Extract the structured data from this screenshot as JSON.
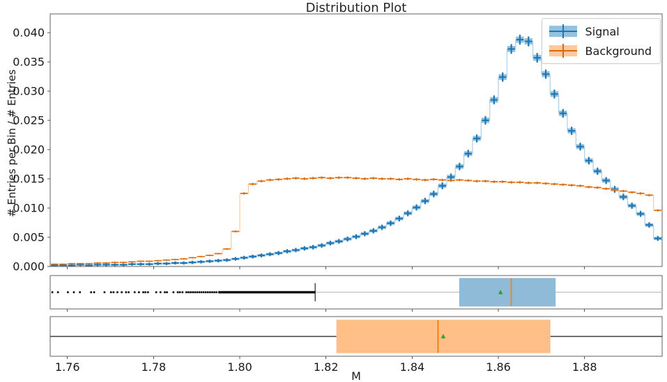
{
  "chart_data": {
    "type": "histogram+boxplots",
    "title": "Distribution Plot",
    "xlabel": "M",
    "ylabel": "# Entries per Bin / # Entries",
    "xlim": [
      1.756,
      1.898
    ],
    "ylim": [
      0,
      0.0432
    ],
    "grid": false,
    "legend_position": "upper right",
    "x_ticks": [
      1.76,
      1.78,
      1.8,
      1.82,
      1.84,
      1.86,
      1.88
    ],
    "x_tick_labels": [
      "1.76",
      "1.78",
      "1.80",
      "1.82",
      "1.84",
      "1.86",
      "1.88"
    ],
    "y_ticks": [
      0.0,
      0.005,
      0.01,
      0.015,
      0.02,
      0.025,
      0.03,
      0.035,
      0.04
    ],
    "y_tick_labels": [
      "0.000",
      "0.005",
      "0.010",
      "0.015",
      "0.020",
      "0.025",
      "0.030",
      "0.035",
      "0.040"
    ],
    "bin_start": 1.756,
    "bin_width": 0.002,
    "series": [
      {
        "name": "Signal",
        "marker_color": "#1f77b4",
        "band_fill": "#94c1de",
        "step_color": "#aecfe8",
        "values": [
          0.0002,
          0.0002,
          0.0002,
          0.0003,
          0.0002,
          0.0003,
          0.0003,
          0.0003,
          0.0003,
          0.0004,
          0.0004,
          0.0004,
          0.0005,
          0.0005,
          0.0006,
          0.0006,
          0.0007,
          0.0008,
          0.0009,
          0.001,
          0.0011,
          0.0013,
          0.0015,
          0.0017,
          0.0019,
          0.0021,
          0.0023,
          0.0026,
          0.0028,
          0.0031,
          0.0033,
          0.0036,
          0.004,
          0.0043,
          0.0047,
          0.0051,
          0.0056,
          0.0061,
          0.0067,
          0.0074,
          0.0082,
          0.0091,
          0.0101,
          0.0112,
          0.0124,
          0.0138,
          0.0153,
          0.0171,
          0.0193,
          0.0219,
          0.025,
          0.0285,
          0.0324,
          0.0372,
          0.0388,
          0.0385,
          0.0357,
          0.0329,
          0.0295,
          0.0262,
          0.0232,
          0.0205,
          0.0181,
          0.0163,
          0.0147,
          0.0132,
          0.0119,
          0.0104,
          0.009,
          0.0071,
          0.0048
        ]
      },
      {
        "name": "Background",
        "marker_color": "#d96a09",
        "band_fill": "#ffc9a0",
        "step_color": "#ffc9a0",
        "values": [
          0.0004,
          0.0004,
          0.0005,
          0.0005,
          0.0005,
          0.0006,
          0.0006,
          0.0007,
          0.0007,
          0.0008,
          0.0009,
          0.0009,
          0.001,
          0.0011,
          0.0012,
          0.0013,
          0.0015,
          0.0017,
          0.0019,
          0.0022,
          0.003,
          0.006,
          0.0125,
          0.0141,
          0.0146,
          0.0148,
          0.0149,
          0.015,
          0.0151,
          0.015,
          0.0151,
          0.0152,
          0.0151,
          0.0152,
          0.0152,
          0.0151,
          0.015,
          0.0151,
          0.015,
          0.015,
          0.0149,
          0.015,
          0.0149,
          0.0148,
          0.0149,
          0.0148,
          0.0147,
          0.0148,
          0.0147,
          0.0146,
          0.0146,
          0.0145,
          0.0145,
          0.0144,
          0.0144,
          0.0143,
          0.0143,
          0.0142,
          0.0141,
          0.014,
          0.0139,
          0.0138,
          0.0136,
          0.0135,
          0.0133,
          0.0131,
          0.0129,
          0.0127,
          0.0125,
          0.0122,
          0.0096
        ]
      }
    ],
    "boxplots": [
      {
        "name": "Signal",
        "box_fill": "#8fbbd9",
        "whisker_color": "#c9c9c9",
        "cap_color": "#4d4d4d",
        "median_color": "#ff7f0e",
        "mean_color": "#2ca02c",
        "whisker_lo": 1.8175,
        "q1": 1.851,
        "median": 1.863,
        "q3": 1.8732,
        "whisker_hi": 1.898,
        "mean": 1.8605,
        "flier_band": [
          1.795,
          1.8175
        ],
        "fliers": [
          1.7565,
          1.7578,
          1.7601,
          1.7615,
          1.7629,
          1.7655,
          1.7662,
          1.7686,
          1.7701,
          1.7707,
          1.7716,
          1.7726,
          1.7736,
          1.7742,
          1.7756,
          1.7766,
          1.7776,
          1.7781,
          1.7787,
          1.7806,
          1.7816,
          1.7826,
          1.7831,
          1.7846,
          1.7856,
          1.7861,
          1.7867,
          1.7876,
          1.7881,
          1.7886,
          1.7891,
          1.7896,
          1.7901,
          1.7906,
          1.7911,
          1.7916,
          1.7921,
          1.7926,
          1.7931,
          1.7936,
          1.7941,
          1.7946
        ]
      },
      {
        "name": "Background",
        "box_fill": "#ffbf87",
        "whisker_color": "#3c3c3c",
        "cap_color": "#3c3c3c",
        "median_color": "#f07a10",
        "mean_color": "#2ca02c",
        "whisker_lo": 1.756,
        "q1": 1.8225,
        "median": 1.846,
        "q3": 1.872,
        "whisker_hi": 1.898,
        "mean": 1.8472,
        "flier_band": null,
        "fliers": []
      }
    ],
    "frame_color": "#606060",
    "tick_color": "#555555"
  },
  "legend": {
    "items": [
      {
        "label": "Signal"
      },
      {
        "label": "Background"
      }
    ]
  }
}
